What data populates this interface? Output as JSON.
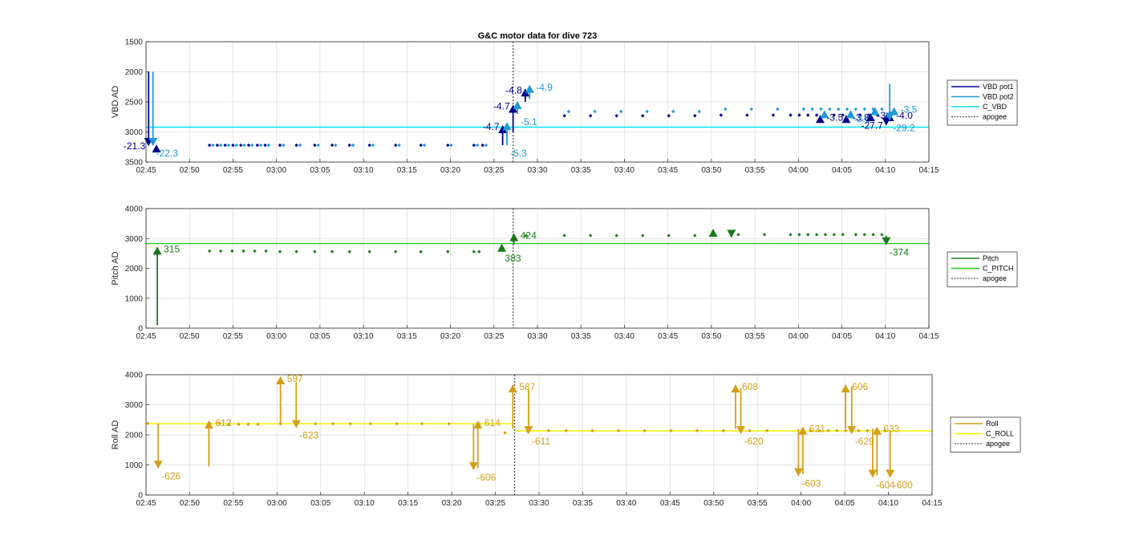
{
  "figure": {
    "title": "G&C motor data for dive 723"
  },
  "colors": {
    "vbd_pot1": "#00008b",
    "vbd_pot2": "#1e9ad6",
    "c_vbd": "#00e5ee",
    "pitch": "#1b7a1b",
    "c_pitch": "#22cc22",
    "roll": "#d4a017",
    "c_roll": "#f2f200",
    "apogee": "#555555"
  },
  "chart_data": [
    {
      "type": "scatter",
      "title": "G&C motor data for dive 723",
      "ylabel": "VBD AD",
      "xlim": [
        165,
        255
      ],
      "ylim": [
        3500,
        1500
      ],
      "y_reversed": true,
      "grid": true,
      "legend_position": "right",
      "x_ticks": [
        165,
        170,
        175,
        180,
        185,
        190,
        195,
        200,
        205,
        210,
        215,
        220,
        225,
        230,
        235,
        240,
        245,
        250,
        255
      ],
      "x_tick_labels": [
        "02:45",
        "02:50",
        "02:55",
        "03:00",
        "03:05",
        "03:10",
        "03:15",
        "03:20",
        "03:25",
        "03:30",
        "03:35",
        "03:40",
        "03:45",
        "03:50",
        "03:55",
        "04:00",
        "04:05",
        "04:10",
        "04:15"
      ],
      "y_ticks": [
        1500,
        2000,
        2500,
        3000,
        3500
      ],
      "y_tick_labels": [
        "1500",
        "2000",
        "2500",
        "3000",
        "3500"
      ],
      "apogee_x": 207.2,
      "reference_lines": [
        {
          "name": "C_VBD",
          "y": 2920,
          "color_key": "c_vbd"
        }
      ],
      "legend": [
        "VBD pot1",
        "VBD pot2",
        "C_VBD",
        "apogee"
      ],
      "series": [
        {
          "name": "VBD pot1",
          "color_key": "vbd_pot1",
          "x": [
            172.3,
            173.2,
            174.1,
            175.0,
            175.9,
            176.8,
            177.8,
            178.7,
            180.4,
            182.3,
            184.4,
            186.4,
            188.4,
            190.7,
            193.7,
            196.6,
            199.7,
            202.7,
            203.7,
            213.1,
            216.1,
            219.1,
            222.1,
            225.1,
            228.1,
            231.1,
            234.1,
            237.1,
            239.1,
            240.1,
            241.1,
            242.1,
            243.1,
            244.1,
            245.1,
            246.1,
            247.1,
            248.1,
            249.1
          ],
          "y": [
            3220,
            3220,
            3220,
            3220,
            3220,
            3220,
            3220,
            3220,
            3220,
            3220,
            3220,
            3220,
            3220,
            3220,
            3220,
            3220,
            3220,
            3220,
            3220,
            2730,
            2730,
            2730,
            2730,
            2730,
            2730,
            2720,
            2720,
            2720,
            2720,
            2720,
            2720,
            2720,
            2720,
            2720,
            2720,
            2720,
            2720,
            2720,
            2720
          ]
        },
        {
          "name": "VBD pot2",
          "color_key": "vbd_pot2",
          "x": [
            172.7,
            173.6,
            174.5,
            175.4,
            176.3,
            177.2,
            178.2,
            179.1,
            180.8,
            182.7,
            184.8,
            186.8,
            188.8,
            191.1,
            194.1,
            197.0,
            200.1,
            203.1,
            204.1,
            213.6,
            216.6,
            219.6,
            222.6,
            225.6,
            228.6,
            231.6,
            234.6,
            237.6,
            240.6,
            241.6,
            242.6,
            243.6,
            244.6,
            245.6,
            246.6,
            247.6,
            248.6,
            249.6
          ],
          "y": [
            3220,
            3220,
            3220,
            3220,
            3220,
            3220,
            3220,
            3220,
            3220,
            3220,
            3220,
            3220,
            3220,
            3220,
            3220,
            3220,
            3220,
            3220,
            3220,
            2660,
            2660,
            2660,
            2660,
            2660,
            2660,
            2620,
            2620,
            2620,
            2620,
            2620,
            2620,
            2620,
            2620,
            2620,
            2620,
            2620,
            2620,
            2620
          ]
        }
      ],
      "arrows": [
        {
          "series": "VBD pot1",
          "x": 165.3,
          "from": 2000,
          "to": 3220,
          "label": "-21.3",
          "label_side": "left"
        },
        {
          "series": "VBD pot2",
          "x": 165.8,
          "from": 2000,
          "to": 3220,
          "label": "-22.3",
          "label_side": "below"
        },
        {
          "series": "VBD pot1",
          "x": 166.2,
          "from": 3220,
          "to": 3220,
          "label": "",
          "label_side": "none"
        },
        {
          "series": "VBD pot1",
          "x": 206.0,
          "from": 3220,
          "to": 2900,
          "label": "-4.7",
          "label_side": "left"
        },
        {
          "series": "VBD pot2",
          "x": 206.5,
          "from": 3220,
          "to": 2850,
          "label": "-5.3",
          "label_side": "below"
        },
        {
          "series": "VBD pot1",
          "x": 207.2,
          "from": 3000,
          "to": 2560,
          "label": "-4.7",
          "label_side": "left"
        },
        {
          "series": "VBD pot2",
          "x": 207.7,
          "from": 2700,
          "to": 2500,
          "label": "-5.1",
          "label_side": "below"
        },
        {
          "series": "VBD pot1",
          "x": 208.6,
          "from": 2500,
          "to": 2290,
          "label": "-4.8",
          "label_side": "left"
        },
        {
          "series": "VBD pot2",
          "x": 209.1,
          "from": 2450,
          "to": 2230,
          "label": "-4.9",
          "label_side": "right"
        },
        {
          "series": "VBD pot1",
          "x": 242.5,
          "from": 2730,
          "to": 2730,
          "label": "-3.5",
          "label_side": "right"
        },
        {
          "series": "VBD pot2",
          "x": 243.0,
          "from": 2650,
          "to": 2650,
          "label": "",
          "label_side": "none"
        },
        {
          "series": "VBD pot1",
          "x": 245.5,
          "from": 2730,
          "to": 2730,
          "label": "-3.8",
          "label_side": "right"
        },
        {
          "series": "VBD pot2",
          "x": 246.0,
          "from": 2650,
          "to": 2650,
          "label": "-3.6",
          "label_side": "below"
        },
        {
          "series": "VBD pot1",
          "x": 248.3,
          "from": 2700,
          "to": 2700,
          "label": "-3.7",
          "label_side": "right"
        },
        {
          "series": "VBD pot2",
          "x": 248.8,
          "from": 2600,
          "to": 2600,
          "label": "",
          "label_side": "none"
        },
        {
          "series": "VBD pot1",
          "x": 250.5,
          "from": 2700,
          "to": 2700,
          "label": "-4.0",
          "label_side": "right"
        },
        {
          "series": "VBD pot2",
          "x": 251.0,
          "from": 2600,
          "to": 2600,
          "label": "-3.5",
          "label_side": "right"
        },
        {
          "series": "VBD pot1",
          "x": 250.1,
          "from": 2720,
          "to": 2880,
          "label": "-27.7",
          "label_side": "left"
        },
        {
          "series": "VBD pot2",
          "x": 250.5,
          "from": 2200,
          "to": 2800,
          "label": "-29.2",
          "label_side": "below"
        }
      ]
    },
    {
      "type": "scatter",
      "ylabel": "Pitch AD",
      "xlim": [
        165,
        255
      ],
      "ylim": [
        0,
        4000
      ],
      "grid": true,
      "legend_position": "right",
      "x_ticks": [
        165,
        170,
        175,
        180,
        185,
        190,
        195,
        200,
        205,
        210,
        215,
        220,
        225,
        230,
        235,
        240,
        245,
        250,
        255
      ],
      "x_tick_labels": [
        "02:45",
        "02:50",
        "02:55",
        "03:00",
        "03:05",
        "03:10",
        "03:15",
        "03:20",
        "03:25",
        "03:30",
        "03:35",
        "03:40",
        "03:45",
        "03:50",
        "03:55",
        "04:00",
        "04:05",
        "04:10",
        "04:15"
      ],
      "y_ticks": [
        0,
        1000,
        2000,
        3000,
        4000
      ],
      "y_tick_labels": [
        "0",
        "1000",
        "2000",
        "3000",
        "4000"
      ],
      "apogee_x": 207.2,
      "reference_lines": [
        {
          "name": "C_PITCH",
          "y": 2830,
          "color_key": "c_pitch"
        }
      ],
      "legend": [
        "Pitch",
        "C_PITCH",
        "apogee"
      ],
      "series": [
        {
          "name": "Pitch",
          "color_key": "pitch",
          "x": [
            172.3,
            173.6,
            174.9,
            176.2,
            177.5,
            178.8,
            180.4,
            182.3,
            184.4,
            186.4,
            188.4,
            190.7,
            193.7,
            196.6,
            199.7,
            202.7,
            203.3,
            208.7,
            213.1,
            216.1,
            219.1,
            222.1,
            225.1,
            228.1,
            233.1,
            236.1,
            239.1,
            240.1,
            241.1,
            242.1,
            243.1,
            244.1,
            245.1,
            246.6,
            247.6,
            248.6,
            249.6
          ],
          "y": [
            2580,
            2580,
            2580,
            2580,
            2580,
            2580,
            2560,
            2560,
            2560,
            2560,
            2560,
            2560,
            2560,
            2560,
            2560,
            2560,
            2560,
            3100,
            3100,
            3100,
            3100,
            3100,
            3100,
            3100,
            3130,
            3130,
            3130,
            3130,
            3130,
            3130,
            3130,
            3130,
            3130,
            3130,
            3130,
            3130,
            3130
          ]
        }
      ],
      "arrows": [
        {
          "series": "Pitch",
          "x": 166.3,
          "from": 100,
          "to": 2700,
          "label": "315",
          "label_side": "right"
        },
        {
          "series": "Pitch",
          "x": 205.9,
          "from": 2600,
          "to": 2800,
          "label": "383",
          "label_side": "below"
        },
        {
          "series": "Pitch",
          "x": 207.3,
          "from": 2800,
          "to": 3150,
          "label": "424",
          "label_side": "right"
        },
        {
          "series": "Pitch",
          "x": 230.2,
          "from": 3100,
          "to": 3300,
          "label": "",
          "label_side": "none"
        },
        {
          "series": "Pitch",
          "x": 232.3,
          "from": 3150,
          "to": 3050,
          "label": "",
          "label_side": "none"
        },
        {
          "series": "Pitch",
          "x": 250.1,
          "from": 3100,
          "to": 2800,
          "label": "-374",
          "label_side": "below"
        }
      ]
    },
    {
      "type": "scatter",
      "ylabel": "Roll AD",
      "xlim": [
        165,
        255
      ],
      "ylim": [
        0,
        4000
      ],
      "grid": true,
      "legend_position": "right",
      "x_ticks": [
        165,
        170,
        175,
        180,
        185,
        190,
        195,
        200,
        205,
        210,
        215,
        220,
        225,
        230,
        235,
        240,
        245,
        250,
        255
      ],
      "x_tick_labels": [
        "02:45",
        "02:50",
        "02:55",
        "03:00",
        "03:05",
        "03:10",
        "03:15",
        "03:20",
        "03:25",
        "03:30",
        "03:35",
        "03:40",
        "03:45",
        "03:50",
        "03:55",
        "04:00",
        "04:05",
        "04:10",
        "04:15"
      ],
      "y_ticks": [
        0,
        1000,
        2000,
        3000,
        4000
      ],
      "y_tick_labels": [
        "0",
        "1000",
        "2000",
        "3000",
        "4000"
      ],
      "apogee_x": 207.2,
      "reference_lines": [
        {
          "name": "C_ROLL",
          "y": 2370,
          "color_key": "c_roll",
          "x_end": 207.2
        },
        {
          "name": "C_ROLL",
          "y": 2130,
          "color_key": "c_roll",
          "x_start": 207.2
        }
      ],
      "legend": [
        "Roll",
        "C_ROLL",
        "apogee"
      ],
      "series": [
        {
          "name": "Roll",
          "color_key": "roll",
          "x": [
            165.2,
            172.3,
            173.4,
            174.5,
            175.6,
            176.7,
            177.8,
            180.4,
            182.3,
            184.4,
            186.4,
            188.4,
            190.7,
            193.7,
            196.6,
            199.7,
            203.1,
            206.1,
            208.7,
            211.1,
            213.1,
            216.1,
            219.1,
            222.1,
            225.1,
            228.1,
            231.1,
            234.1,
            236.1,
            241.1,
            242.1,
            243.1,
            244.1,
            245.1,
            246.6,
            247.6,
            249.6
          ],
          "y": [
            2380,
            2380,
            2380,
            2350,
            2350,
            2350,
            2350,
            2370,
            2370,
            2370,
            2370,
            2370,
            2370,
            2370,
            2370,
            2370,
            2370,
            2070,
            2120,
            2140,
            2140,
            2140,
            2140,
            2140,
            2140,
            2140,
            2140,
            2140,
            2140,
            2140,
            2140,
            2140,
            2140,
            2140,
            2140,
            2140,
            2140
          ]
        }
      ],
      "arrows": [
        {
          "series": "Roll",
          "x": 166.4,
          "from": 2380,
          "to": 900,
          "label": "-626",
          "label_side": "below"
        },
        {
          "series": "Roll",
          "x": 172.2,
          "from": 950,
          "to": 2450,
          "label": "612",
          "label_side": "right"
        },
        {
          "series": "Roll",
          "x": 180.4,
          "from": 2350,
          "to": 3920,
          "label": "597",
          "label_side": "right"
        },
        {
          "series": "Roll",
          "x": 182.2,
          "from": 3750,
          "to": 2250,
          "label": "-623",
          "label_side": "below"
        },
        {
          "series": "Roll",
          "x": 202.5,
          "from": 2350,
          "to": 850,
          "label": "-606",
          "label_side": "below"
        },
        {
          "series": "Roll",
          "x": 203.0,
          "from": 900,
          "to": 2450,
          "label": "614",
          "label_side": "right"
        },
        {
          "series": "Roll",
          "x": 207.0,
          "from": 2200,
          "to": 3650,
          "label": "587",
          "label_side": "right"
        },
        {
          "series": "Roll",
          "x": 208.8,
          "from": 3500,
          "to": 2050,
          "label": "-611",
          "label_side": "below"
        },
        {
          "series": "Roll",
          "x": 232.5,
          "from": 2200,
          "to": 3650,
          "label": "608",
          "label_side": "right"
        },
        {
          "series": "Roll",
          "x": 233.1,
          "from": 3550,
          "to": 2050,
          "label": "-620",
          "label_side": "below"
        },
        {
          "series": "Roll",
          "x": 239.7,
          "from": 2200,
          "to": 650,
          "label": "-603",
          "label_side": "below"
        },
        {
          "series": "Roll",
          "x": 240.2,
          "from": 700,
          "to": 2250,
          "label": "621",
          "label_side": "right"
        },
        {
          "series": "Roll",
          "x": 245.1,
          "from": 2200,
          "to": 3650,
          "label": "606",
          "label_side": "right"
        },
        {
          "series": "Roll",
          "x": 245.8,
          "from": 3600,
          "to": 2050,
          "label": "-629",
          "label_side": "below"
        },
        {
          "series": "Roll",
          "x": 248.2,
          "from": 2200,
          "to": 600,
          "label": "-604",
          "label_side": "below"
        },
        {
          "series": "Roll",
          "x": 248.7,
          "from": 650,
          "to": 2250,
          "label": "633",
          "label_side": "right"
        },
        {
          "series": "Roll",
          "x": 250.2,
          "from": 2150,
          "to": 600,
          "label": "-600",
          "label_side": "below"
        }
      ]
    }
  ]
}
